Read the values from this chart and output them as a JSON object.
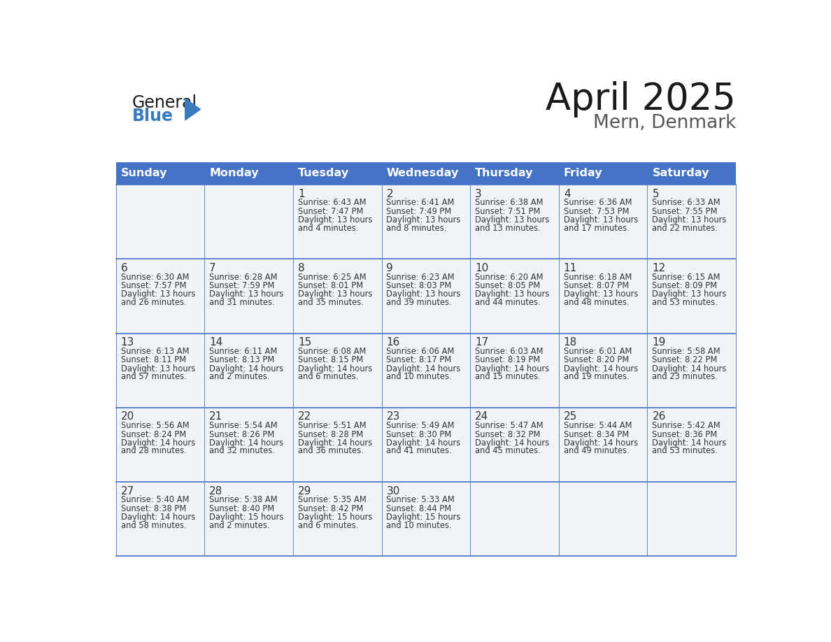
{
  "title": "April 2025",
  "subtitle": "Mern, Denmark",
  "header_bg": "#4472C4",
  "header_text_color": "#FFFFFF",
  "cell_bg_light": "#F0F4F8",
  "cell_bg_white": "#FFFFFF",
  "text_color": "#333333",
  "days_of_week": [
    "Sunday",
    "Monday",
    "Tuesday",
    "Wednesday",
    "Thursday",
    "Friday",
    "Saturday"
  ],
  "weeks": [
    [
      {
        "day": "",
        "sunrise": "",
        "sunset": "",
        "daylight1": "",
        "daylight2": ""
      },
      {
        "day": "",
        "sunrise": "",
        "sunset": "",
        "daylight1": "",
        "daylight2": ""
      },
      {
        "day": "1",
        "sunrise": "Sunrise: 6:43 AM",
        "sunset": "Sunset: 7:47 PM",
        "daylight1": "Daylight: 13 hours",
        "daylight2": "and 4 minutes."
      },
      {
        "day": "2",
        "sunrise": "Sunrise: 6:41 AM",
        "sunset": "Sunset: 7:49 PM",
        "daylight1": "Daylight: 13 hours",
        "daylight2": "and 8 minutes."
      },
      {
        "day": "3",
        "sunrise": "Sunrise: 6:38 AM",
        "sunset": "Sunset: 7:51 PM",
        "daylight1": "Daylight: 13 hours",
        "daylight2": "and 13 minutes."
      },
      {
        "day": "4",
        "sunrise": "Sunrise: 6:36 AM",
        "sunset": "Sunset: 7:53 PM",
        "daylight1": "Daylight: 13 hours",
        "daylight2": "and 17 minutes."
      },
      {
        "day": "5",
        "sunrise": "Sunrise: 6:33 AM",
        "sunset": "Sunset: 7:55 PM",
        "daylight1": "Daylight: 13 hours",
        "daylight2": "and 22 minutes."
      }
    ],
    [
      {
        "day": "6",
        "sunrise": "Sunrise: 6:30 AM",
        "sunset": "Sunset: 7:57 PM",
        "daylight1": "Daylight: 13 hours",
        "daylight2": "and 26 minutes."
      },
      {
        "day": "7",
        "sunrise": "Sunrise: 6:28 AM",
        "sunset": "Sunset: 7:59 PM",
        "daylight1": "Daylight: 13 hours",
        "daylight2": "and 31 minutes."
      },
      {
        "day": "8",
        "sunrise": "Sunrise: 6:25 AM",
        "sunset": "Sunset: 8:01 PM",
        "daylight1": "Daylight: 13 hours",
        "daylight2": "and 35 minutes."
      },
      {
        "day": "9",
        "sunrise": "Sunrise: 6:23 AM",
        "sunset": "Sunset: 8:03 PM",
        "daylight1": "Daylight: 13 hours",
        "daylight2": "and 39 minutes."
      },
      {
        "day": "10",
        "sunrise": "Sunrise: 6:20 AM",
        "sunset": "Sunset: 8:05 PM",
        "daylight1": "Daylight: 13 hours",
        "daylight2": "and 44 minutes."
      },
      {
        "day": "11",
        "sunrise": "Sunrise: 6:18 AM",
        "sunset": "Sunset: 8:07 PM",
        "daylight1": "Daylight: 13 hours",
        "daylight2": "and 48 minutes."
      },
      {
        "day": "12",
        "sunrise": "Sunrise: 6:15 AM",
        "sunset": "Sunset: 8:09 PM",
        "daylight1": "Daylight: 13 hours",
        "daylight2": "and 53 minutes."
      }
    ],
    [
      {
        "day": "13",
        "sunrise": "Sunrise: 6:13 AM",
        "sunset": "Sunset: 8:11 PM",
        "daylight1": "Daylight: 13 hours",
        "daylight2": "and 57 minutes."
      },
      {
        "day": "14",
        "sunrise": "Sunrise: 6:11 AM",
        "sunset": "Sunset: 8:13 PM",
        "daylight1": "Daylight: 14 hours",
        "daylight2": "and 2 minutes."
      },
      {
        "day": "15",
        "sunrise": "Sunrise: 6:08 AM",
        "sunset": "Sunset: 8:15 PM",
        "daylight1": "Daylight: 14 hours",
        "daylight2": "and 6 minutes."
      },
      {
        "day": "16",
        "sunrise": "Sunrise: 6:06 AM",
        "sunset": "Sunset: 8:17 PM",
        "daylight1": "Daylight: 14 hours",
        "daylight2": "and 10 minutes."
      },
      {
        "day": "17",
        "sunrise": "Sunrise: 6:03 AM",
        "sunset": "Sunset: 8:19 PM",
        "daylight1": "Daylight: 14 hours",
        "daylight2": "and 15 minutes."
      },
      {
        "day": "18",
        "sunrise": "Sunrise: 6:01 AM",
        "sunset": "Sunset: 8:20 PM",
        "daylight1": "Daylight: 14 hours",
        "daylight2": "and 19 minutes."
      },
      {
        "day": "19",
        "sunrise": "Sunrise: 5:58 AM",
        "sunset": "Sunset: 8:22 PM",
        "daylight1": "Daylight: 14 hours",
        "daylight2": "and 23 minutes."
      }
    ],
    [
      {
        "day": "20",
        "sunrise": "Sunrise: 5:56 AM",
        "sunset": "Sunset: 8:24 PM",
        "daylight1": "Daylight: 14 hours",
        "daylight2": "and 28 minutes."
      },
      {
        "day": "21",
        "sunrise": "Sunrise: 5:54 AM",
        "sunset": "Sunset: 8:26 PM",
        "daylight1": "Daylight: 14 hours",
        "daylight2": "and 32 minutes."
      },
      {
        "day": "22",
        "sunrise": "Sunrise: 5:51 AM",
        "sunset": "Sunset: 8:28 PM",
        "daylight1": "Daylight: 14 hours",
        "daylight2": "and 36 minutes."
      },
      {
        "day": "23",
        "sunrise": "Sunrise: 5:49 AM",
        "sunset": "Sunset: 8:30 PM",
        "daylight1": "Daylight: 14 hours",
        "daylight2": "and 41 minutes."
      },
      {
        "day": "24",
        "sunrise": "Sunrise: 5:47 AM",
        "sunset": "Sunset: 8:32 PM",
        "daylight1": "Daylight: 14 hours",
        "daylight2": "and 45 minutes."
      },
      {
        "day": "25",
        "sunrise": "Sunrise: 5:44 AM",
        "sunset": "Sunset: 8:34 PM",
        "daylight1": "Daylight: 14 hours",
        "daylight2": "and 49 minutes."
      },
      {
        "day": "26",
        "sunrise": "Sunrise: 5:42 AM",
        "sunset": "Sunset: 8:36 PM",
        "daylight1": "Daylight: 14 hours",
        "daylight2": "and 53 minutes."
      }
    ],
    [
      {
        "day": "27",
        "sunrise": "Sunrise: 5:40 AM",
        "sunset": "Sunset: 8:38 PM",
        "daylight1": "Daylight: 14 hours",
        "daylight2": "and 58 minutes."
      },
      {
        "day": "28",
        "sunrise": "Sunrise: 5:38 AM",
        "sunset": "Sunset: 8:40 PM",
        "daylight1": "Daylight: 15 hours",
        "daylight2": "and 2 minutes."
      },
      {
        "day": "29",
        "sunrise": "Sunrise: 5:35 AM",
        "sunset": "Sunset: 8:42 PM",
        "daylight1": "Daylight: 15 hours",
        "daylight2": "and 6 minutes."
      },
      {
        "day": "30",
        "sunrise": "Sunrise: 5:33 AM",
        "sunset": "Sunset: 8:44 PM",
        "daylight1": "Daylight: 15 hours",
        "daylight2": "and 10 minutes."
      },
      {
        "day": "",
        "sunrise": "",
        "sunset": "",
        "daylight1": "",
        "daylight2": ""
      },
      {
        "day": "",
        "sunrise": "",
        "sunset": "",
        "daylight1": "",
        "daylight2": ""
      },
      {
        "day": "",
        "sunrise": "",
        "sunset": "",
        "daylight1": "",
        "daylight2": ""
      }
    ]
  ],
  "logo_color_general": "#1a1a1a",
  "logo_color_blue": "#3a7abf",
  "logo_triangle_color": "#3a7abf",
  "line_color": "#4472C4",
  "title_color": "#1a1a1a",
  "subtitle_color": "#555555"
}
